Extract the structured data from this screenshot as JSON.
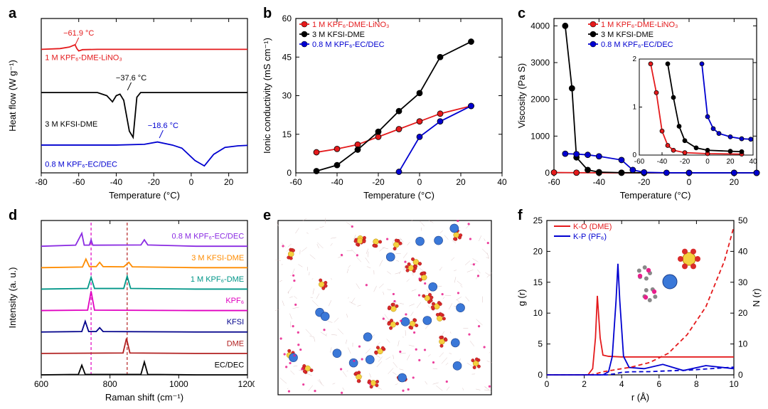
{
  "panelLetters": {
    "a": "a",
    "b": "b",
    "c": "c",
    "d": "d",
    "e": "e",
    "f": "f"
  },
  "colors": {
    "red": "#e41a1c",
    "black": "#000000",
    "blue": "#0000d0",
    "purple": "#8a2be2",
    "orange": "#ff8c00",
    "teal": "#009688",
    "magenta": "#e000c0",
    "navy": "#00008b",
    "darkred": "#b22222"
  },
  "panelA": {
    "xlabel": "Temperature (°C)",
    "ylabel": "Heat flow (W g⁻¹)",
    "xlim": [
      -80,
      30
    ],
    "xticks": [
      -80,
      -60,
      -40,
      -20,
      0,
      20
    ],
    "ylim": [
      0,
      10
    ],
    "traces": [
      {
        "color": "#e41a1c",
        "label": "1 M KPF₆-DME-LiNO₃",
        "anno": "−61.9 °C",
        "annoX": -60,
        "annoY": 8.9,
        "labelX": -78,
        "labelY": 7.3,
        "pts": [
          [
            -80,
            8
          ],
          [
            -70,
            8.05
          ],
          [
            -65,
            8.15
          ],
          [
            -62,
            8.3
          ],
          [
            -61,
            8.05
          ],
          [
            -60,
            7.9
          ],
          [
            -58,
            7.98
          ],
          [
            -50,
            8
          ],
          [
            -40,
            8
          ],
          [
            -30,
            8
          ],
          [
            -10,
            8
          ],
          [
            10,
            8
          ],
          [
            30,
            8
          ]
        ]
      },
      {
        "color": "#000000",
        "label": "3 M KFSI-DME",
        "anno": "−37.6 °C",
        "annoX": -32,
        "annoY": 6.0,
        "labelX": -78,
        "labelY": 3.0,
        "pts": [
          [
            -80,
            5.2
          ],
          [
            -60,
            5.2
          ],
          [
            -50,
            5.2
          ],
          [
            -45,
            5.0
          ],
          [
            -42,
            4.6
          ],
          [
            -40,
            5.0
          ],
          [
            -38,
            5.1
          ],
          [
            -36,
            4.7
          ],
          [
            -33,
            2.7
          ],
          [
            -31,
            2.3
          ],
          [
            -29,
            4.9
          ],
          [
            -27,
            5.2
          ],
          [
            -10,
            5.2
          ],
          [
            10,
            5.2
          ],
          [
            30,
            5.2
          ]
        ]
      },
      {
        "color": "#0000d0",
        "label": "0.8 M KPF₆-EC/DEC",
        "anno": "−18.6 °C",
        "annoX": -15,
        "annoY": 2.9,
        "labelX": -78,
        "labelY": 0.4,
        "pts": [
          [
            -80,
            1.8
          ],
          [
            -60,
            1.8
          ],
          [
            -40,
            1.8
          ],
          [
            -25,
            1.85
          ],
          [
            -18,
            2.0
          ],
          [
            -10,
            1.8
          ],
          [
            -5,
            1.6
          ],
          [
            2,
            0.8
          ],
          [
            7,
            0.45
          ],
          [
            12,
            1.2
          ],
          [
            18,
            1.65
          ],
          [
            25,
            1.75
          ],
          [
            30,
            1.78
          ]
        ]
      }
    ]
  },
  "panelB": {
    "xlabel": "Temperature (°C)",
    "ylabel": "Ionic conductivity (mS cm⁻¹)",
    "xlim": [
      -60,
      40
    ],
    "xticks": [
      -60,
      -40,
      -20,
      0,
      20,
      40
    ],
    "ylim": [
      0,
      60
    ],
    "yticks": [
      0,
      15,
      30,
      45,
      60
    ],
    "series": [
      {
        "name": "1 M KPF₆-DME-LiNO₃",
        "color": "#e41a1c",
        "pts": [
          [
            -50,
            8
          ],
          [
            -40,
            9.3
          ],
          [
            -30,
            11
          ],
          [
            -20,
            14
          ],
          [
            -10,
            17
          ],
          [
            0,
            20
          ],
          [
            10,
            23
          ],
          [
            25,
            26
          ]
        ]
      },
      {
        "name": "3 M KFSI-DME",
        "color": "#000000",
        "pts": [
          [
            -50,
            0.7
          ],
          [
            -40,
            3
          ],
          [
            -30,
            9
          ],
          [
            -20,
            16
          ],
          [
            -10,
            24
          ],
          [
            0,
            31
          ],
          [
            10,
            45
          ],
          [
            25,
            51
          ]
        ]
      },
      {
        "name": "0.8 M KPF₆-EC/DEC",
        "color": "#0000d0",
        "pts": [
          [
            -10,
            0.4
          ],
          [
            0,
            14
          ],
          [
            10,
            20
          ],
          [
            25,
            26
          ]
        ]
      }
    ]
  },
  "panelC": {
    "xlabel": "Temperature (°C)",
    "ylabel": "Viscosity (Pa S)",
    "xlim": [
      -60,
      30
    ],
    "xticks": [
      -60,
      -40,
      -20,
      0,
      20
    ],
    "ylim": [
      0,
      4200
    ],
    "yticks": [
      0,
      1000,
      2000,
      3000,
      4000
    ],
    "series": [
      {
        "name": "1 M KPF₆-DME-LiNO₃",
        "color": "#e41a1c",
        "pts": [
          [
            -60,
            10
          ],
          [
            -50,
            5
          ],
          [
            -40,
            2
          ],
          [
            -30,
            1
          ],
          [
            -20,
            0.5
          ],
          [
            0,
            0.3
          ],
          [
            20,
            0.2
          ],
          [
            30,
            0.2
          ]
        ]
      },
      {
        "name": "3 M KFSI-DME",
        "color": "#000000",
        "pts": [
          [
            -55,
            4000
          ],
          [
            -52,
            2300
          ],
          [
            -50,
            420
          ],
          [
            -45,
            80
          ],
          [
            -40,
            20
          ],
          [
            -30,
            5
          ],
          [
            -20,
            2
          ],
          [
            0,
            1
          ],
          [
            20,
            0.8
          ],
          [
            30,
            0.7
          ]
        ]
      },
      {
        "name": "0.8 M KPF₆-EC/DEC",
        "color": "#0000d0",
        "pts": [
          [
            -55,
            520
          ],
          [
            -50,
            510
          ],
          [
            -45,
            490
          ],
          [
            -40,
            450
          ],
          [
            -30,
            350
          ],
          [
            -25,
            80
          ],
          [
            -20,
            15
          ],
          [
            -10,
            3
          ],
          [
            0,
            1
          ],
          [
            20,
            0.6
          ],
          [
            30,
            0.5
          ]
        ]
      }
    ],
    "inset": {
      "xlim": [
        -60,
        40
      ],
      "ylim": [
        0,
        2
      ],
      "series": [
        {
          "color": "#e41a1c",
          "pts": [
            [
              -50,
              1.9
            ],
            [
              -45,
              1.3
            ],
            [
              -40,
              0.5
            ],
            [
              -35,
              0.2
            ],
            [
              -30,
              0.1
            ],
            [
              -20,
              0.05
            ],
            [
              0,
              0.03
            ],
            [
              30,
              0.02
            ]
          ]
        },
        {
          "color": "#000000",
          "pts": [
            [
              -35,
              1.9
            ],
            [
              -30,
              1.2
            ],
            [
              -25,
              0.6
            ],
            [
              -20,
              0.3
            ],
            [
              -10,
              0.15
            ],
            [
              0,
              0.1
            ],
            [
              20,
              0.08
            ],
            [
              30,
              0.07
            ]
          ]
        },
        {
          "color": "#0000d0",
          "pts": [
            [
              -5,
              1.9
            ],
            [
              0,
              0.8
            ],
            [
              5,
              0.55
            ],
            [
              10,
              0.45
            ],
            [
              20,
              0.38
            ],
            [
              30,
              0.34
            ],
            [
              38,
              0.33
            ]
          ]
        }
      ]
    }
  },
  "panelD": {
    "xlabel": "Raman shift (cm⁻¹)",
    "ylabel": "Intensity (a. u.)",
    "xlim": [
      600,
      1200
    ],
    "xticks": [
      600,
      800,
      1000,
      1200
    ],
    "vlines": [
      {
        "x": 745,
        "color": "#e000c0"
      },
      {
        "x": 850,
        "color": "#b22222"
      }
    ],
    "traces": [
      {
        "color": "#8a2be2",
        "label": "0.8 M KPF₆-EC/DEC",
        "yoff": 6,
        "pts": [
          [
            600,
            0
          ],
          [
            700,
            0.05
          ],
          [
            718,
            0.6
          ],
          [
            725,
            0.05
          ],
          [
            740,
            0.05
          ],
          [
            745,
            0.3
          ],
          [
            750,
            0.05
          ],
          [
            890,
            0.06
          ],
          [
            900,
            0.3
          ],
          [
            910,
            0.06
          ],
          [
            1050,
            0
          ],
          [
            1200,
            0
          ]
        ]
      },
      {
        "color": "#ff8c00",
        "label": "3 M KFSI-DME",
        "yoff": 5,
        "pts": [
          [
            600,
            0
          ],
          [
            720,
            0.03
          ],
          [
            730,
            0.4
          ],
          [
            740,
            0.05
          ],
          [
            760,
            0.05
          ],
          [
            770,
            0.25
          ],
          [
            780,
            0.05
          ],
          [
            840,
            0.04
          ],
          [
            855,
            0.25
          ],
          [
            865,
            0.04
          ],
          [
            1050,
            0
          ],
          [
            1200,
            0
          ]
        ]
      },
      {
        "color": "#009688",
        "label": "1 M KPF₆-DME",
        "yoff": 4,
        "pts": [
          [
            600,
            0
          ],
          [
            735,
            0.03
          ],
          [
            745,
            0.55
          ],
          [
            755,
            0.03
          ],
          [
            840,
            0.03
          ],
          [
            850,
            0.6
          ],
          [
            860,
            0.03
          ],
          [
            1050,
            0
          ],
          [
            1200,
            0
          ]
        ]
      },
      {
        "color": "#e000c0",
        "label": "KPF₆",
        "yoff": 3,
        "pts": [
          [
            600,
            0
          ],
          [
            735,
            0.02
          ],
          [
            745,
            0.9
          ],
          [
            755,
            0.02
          ],
          [
            1050,
            0
          ],
          [
            1200,
            0
          ]
        ]
      },
      {
        "color": "#00008b",
        "label": "KFSI",
        "yoff": 2,
        "pts": [
          [
            600,
            0
          ],
          [
            718,
            0.02
          ],
          [
            728,
            0.5
          ],
          [
            738,
            0.02
          ],
          [
            760,
            0.02
          ],
          [
            770,
            0.2
          ],
          [
            780,
            0.02
          ],
          [
            1050,
            0
          ],
          [
            1200,
            0
          ]
        ]
      },
      {
        "color": "#b22222",
        "label": "DME",
        "yoff": 1,
        "pts": [
          [
            600,
            0
          ],
          [
            838,
            0.02
          ],
          [
            848,
            0.7
          ],
          [
            858,
            0.02
          ],
          [
            1050,
            0
          ],
          [
            1200,
            0
          ]
        ]
      },
      {
        "color": "#000000",
        "label": "EC/DEC",
        "yoff": 0,
        "pts": [
          [
            600,
            0
          ],
          [
            708,
            0.02
          ],
          [
            718,
            0.45
          ],
          [
            728,
            0.02
          ],
          [
            890,
            0.02
          ],
          [
            900,
            0.6
          ],
          [
            910,
            0.02
          ],
          [
            1050,
            0
          ],
          [
            1200,
            0
          ]
        ]
      }
    ]
  },
  "panelF": {
    "xlabel": "r (Å)",
    "ylabelL": "g (r)",
    "ylabelR": "N (r)",
    "xlim": [
      0,
      10
    ],
    "xticks": [
      0,
      2,
      4,
      6,
      8,
      10
    ],
    "ylimL": [
      0,
      25
    ],
    "yticksL": [
      0,
      5,
      10,
      15,
      20,
      25
    ],
    "ylimR": [
      0,
      50
    ],
    "yticksR": [
      0,
      10,
      20,
      30,
      40,
      50
    ],
    "legend": [
      {
        "label": "K-O (DME)",
        "color": "#e41a1c"
      },
      {
        "label": "K-P (PF₆)",
        "color": "#0000d0"
      }
    ],
    "gr": [
      {
        "color": "#e41a1c",
        "pts": [
          [
            0,
            0
          ],
          [
            2.2,
            0
          ],
          [
            2.45,
            1
          ],
          [
            2.6,
            6
          ],
          [
            2.7,
            12.8
          ],
          [
            2.85,
            6
          ],
          [
            3.0,
            3.2
          ],
          [
            3.3,
            3.0
          ],
          [
            4,
            2.9
          ],
          [
            5,
            2.9
          ],
          [
            6,
            2.9
          ],
          [
            10,
            2.9
          ]
        ]
      },
      {
        "color": "#0000d0",
        "pts": [
          [
            0,
            0
          ],
          [
            3.0,
            0
          ],
          [
            3.3,
            0.5
          ],
          [
            3.5,
            3
          ],
          [
            3.7,
            12
          ],
          [
            3.8,
            18
          ],
          [
            3.9,
            12
          ],
          [
            4.1,
            3
          ],
          [
            4.4,
            1.2
          ],
          [
            5.2,
            1.0
          ],
          [
            6.2,
            1.7
          ],
          [
            7.3,
            0.7
          ],
          [
            8.5,
            1.5
          ],
          [
            10,
            1.0
          ]
        ]
      }
    ],
    "nr": [
      {
        "color": "#e41a1c",
        "pts": [
          [
            0,
            0
          ],
          [
            2.3,
            0
          ],
          [
            2.6,
            0.3
          ],
          [
            3.0,
            1.0
          ],
          [
            3.5,
            1.5
          ],
          [
            4.5,
            2.5
          ],
          [
            5.5,
            4
          ],
          [
            6.5,
            7
          ],
          [
            7.5,
            13
          ],
          [
            8.5,
            22
          ],
          [
            9.5,
            37
          ],
          [
            10,
            48
          ]
        ]
      },
      {
        "color": "#0000d0",
        "pts": [
          [
            0,
            0
          ],
          [
            3.2,
            0
          ],
          [
            3.6,
            0.3
          ],
          [
            4.0,
            0.8
          ],
          [
            4.5,
            1.0
          ],
          [
            5.5,
            1.05
          ],
          [
            6.5,
            1.3
          ],
          [
            7.5,
            1.5
          ],
          [
            8.5,
            1.9
          ],
          [
            10,
            2.5
          ]
        ]
      }
    ]
  }
}
